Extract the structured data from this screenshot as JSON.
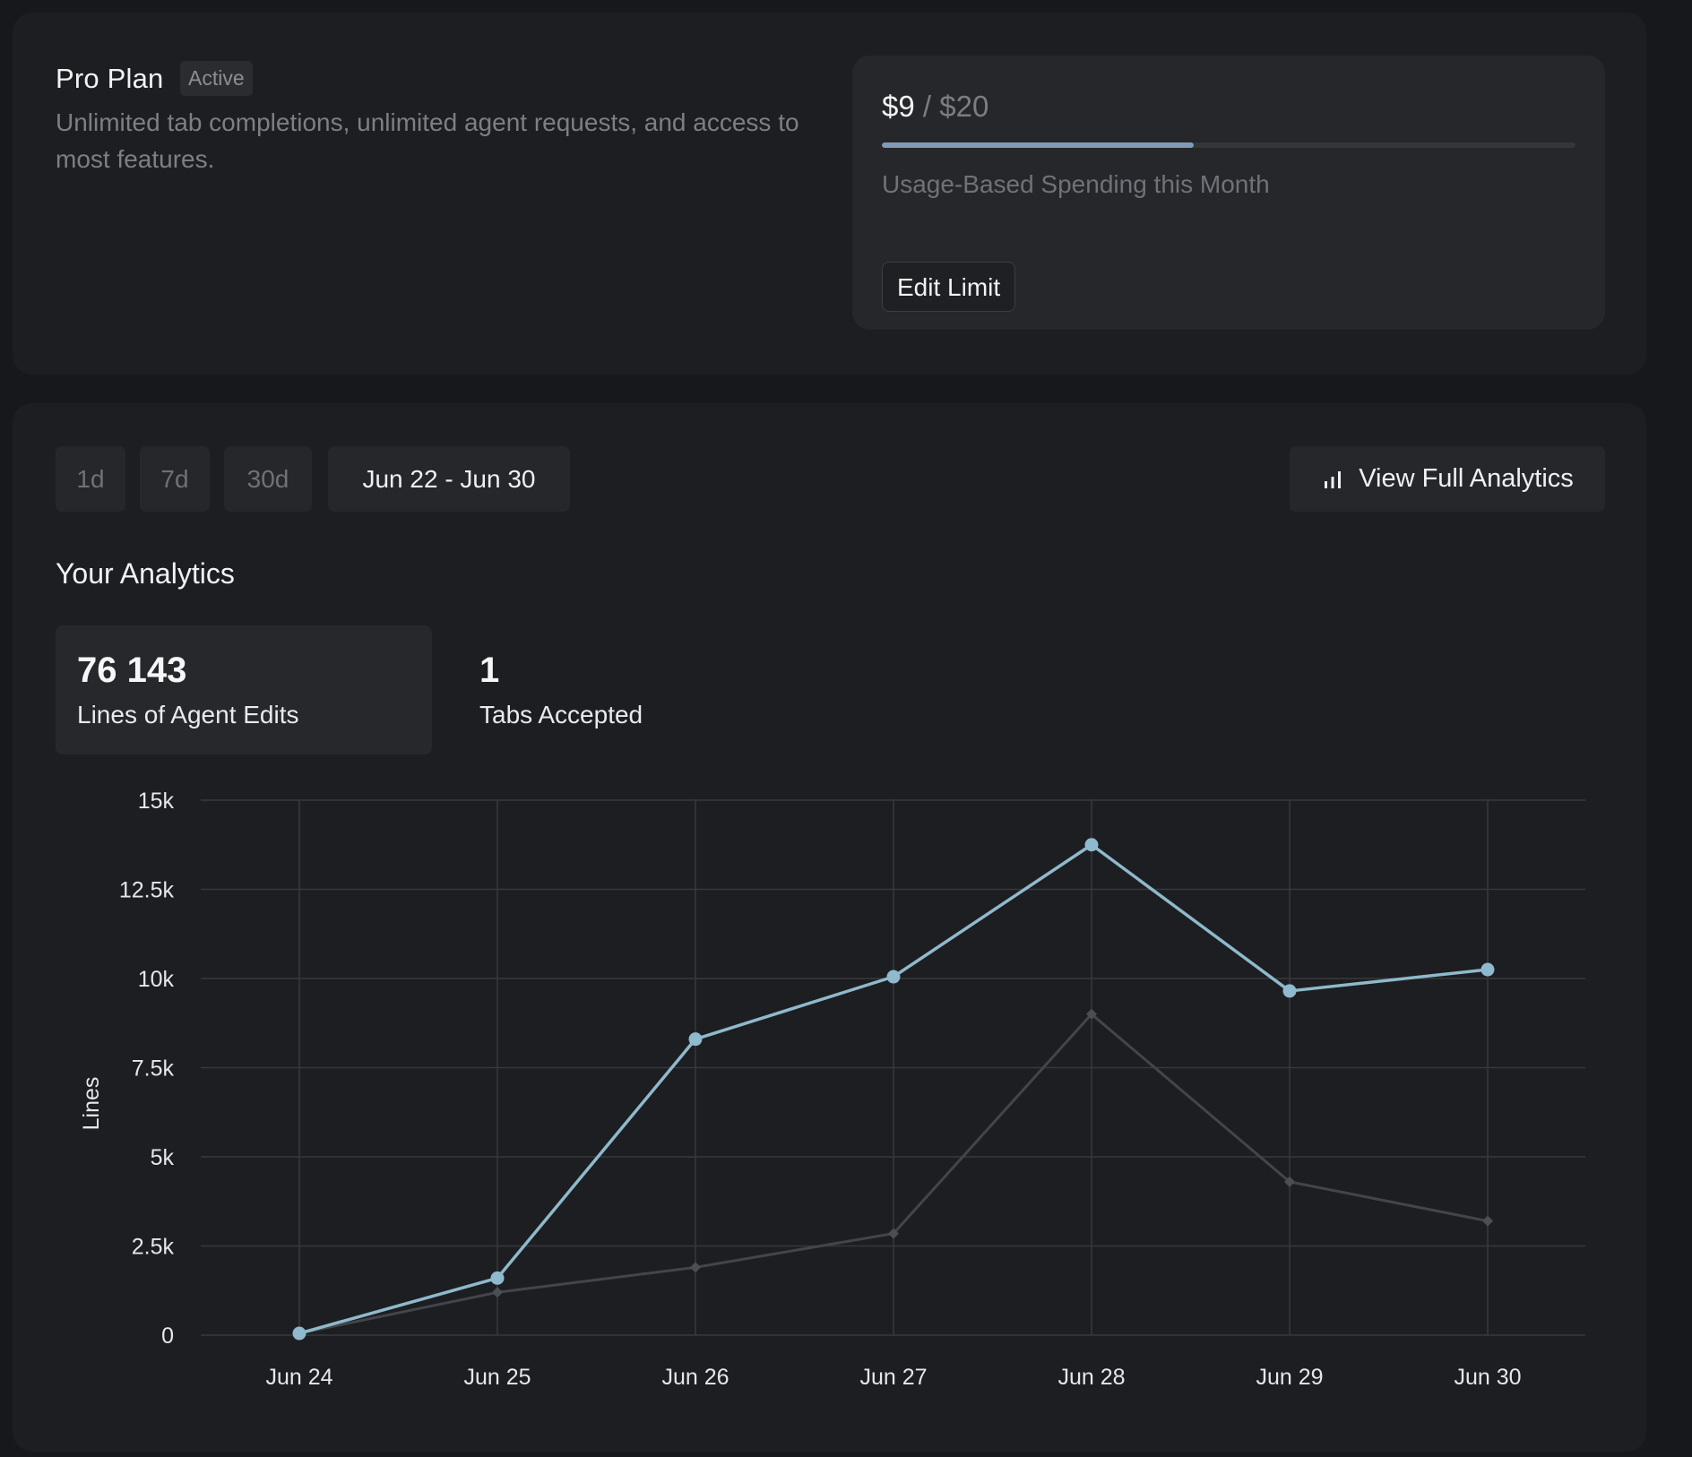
{
  "plan": {
    "title": "Pro Plan",
    "badge": "Active",
    "description": "Unlimited tab completions, unlimited agent requests, and access to most features."
  },
  "usage": {
    "spent": "$9",
    "separator": "/",
    "limit": "$20",
    "progress_fraction": 0.45,
    "caption": "Usage-Based Spending this Month",
    "edit_label": "Edit Limit"
  },
  "range": {
    "options": [
      "1d",
      "7d",
      "30d"
    ],
    "selected_range": "Jun 22 - Jun 30"
  },
  "full_analytics_label": "View Full Analytics",
  "analytics_title": "Your Analytics",
  "stats": [
    {
      "value": "76 143",
      "label": "Lines of Agent Edits",
      "selected": true
    },
    {
      "value": "1",
      "label": "Tabs Accepted",
      "selected": false
    }
  ],
  "colors": {
    "primary_series": "#8fb9cc",
    "secondary_series": "#43454b",
    "progress_fill": "#7f9bb8"
  },
  "chart_data": {
    "type": "line",
    "x": [
      "Jun 24",
      "Jun 25",
      "Jun 26",
      "Jun 27",
      "Jun 28",
      "Jun 29",
      "Jun 30"
    ],
    "ylabel": "Lines",
    "ylim": [
      0,
      15000
    ],
    "yticks": [
      0,
      2500,
      5000,
      7500,
      10000,
      12500,
      15000
    ],
    "ytick_labels": [
      "0",
      "2.5k",
      "5k",
      "7.5k",
      "10k",
      "12.5k",
      "15k"
    ],
    "grid": true,
    "series": [
      {
        "values": [
          50,
          1600,
          8300,
          10050,
          13750,
          9650,
          10250
        ],
        "marker": "circle"
      },
      {
        "values": [
          50,
          1200,
          1900,
          2850,
          9000,
          4300,
          3200
        ],
        "marker": "diamond"
      }
    ]
  }
}
